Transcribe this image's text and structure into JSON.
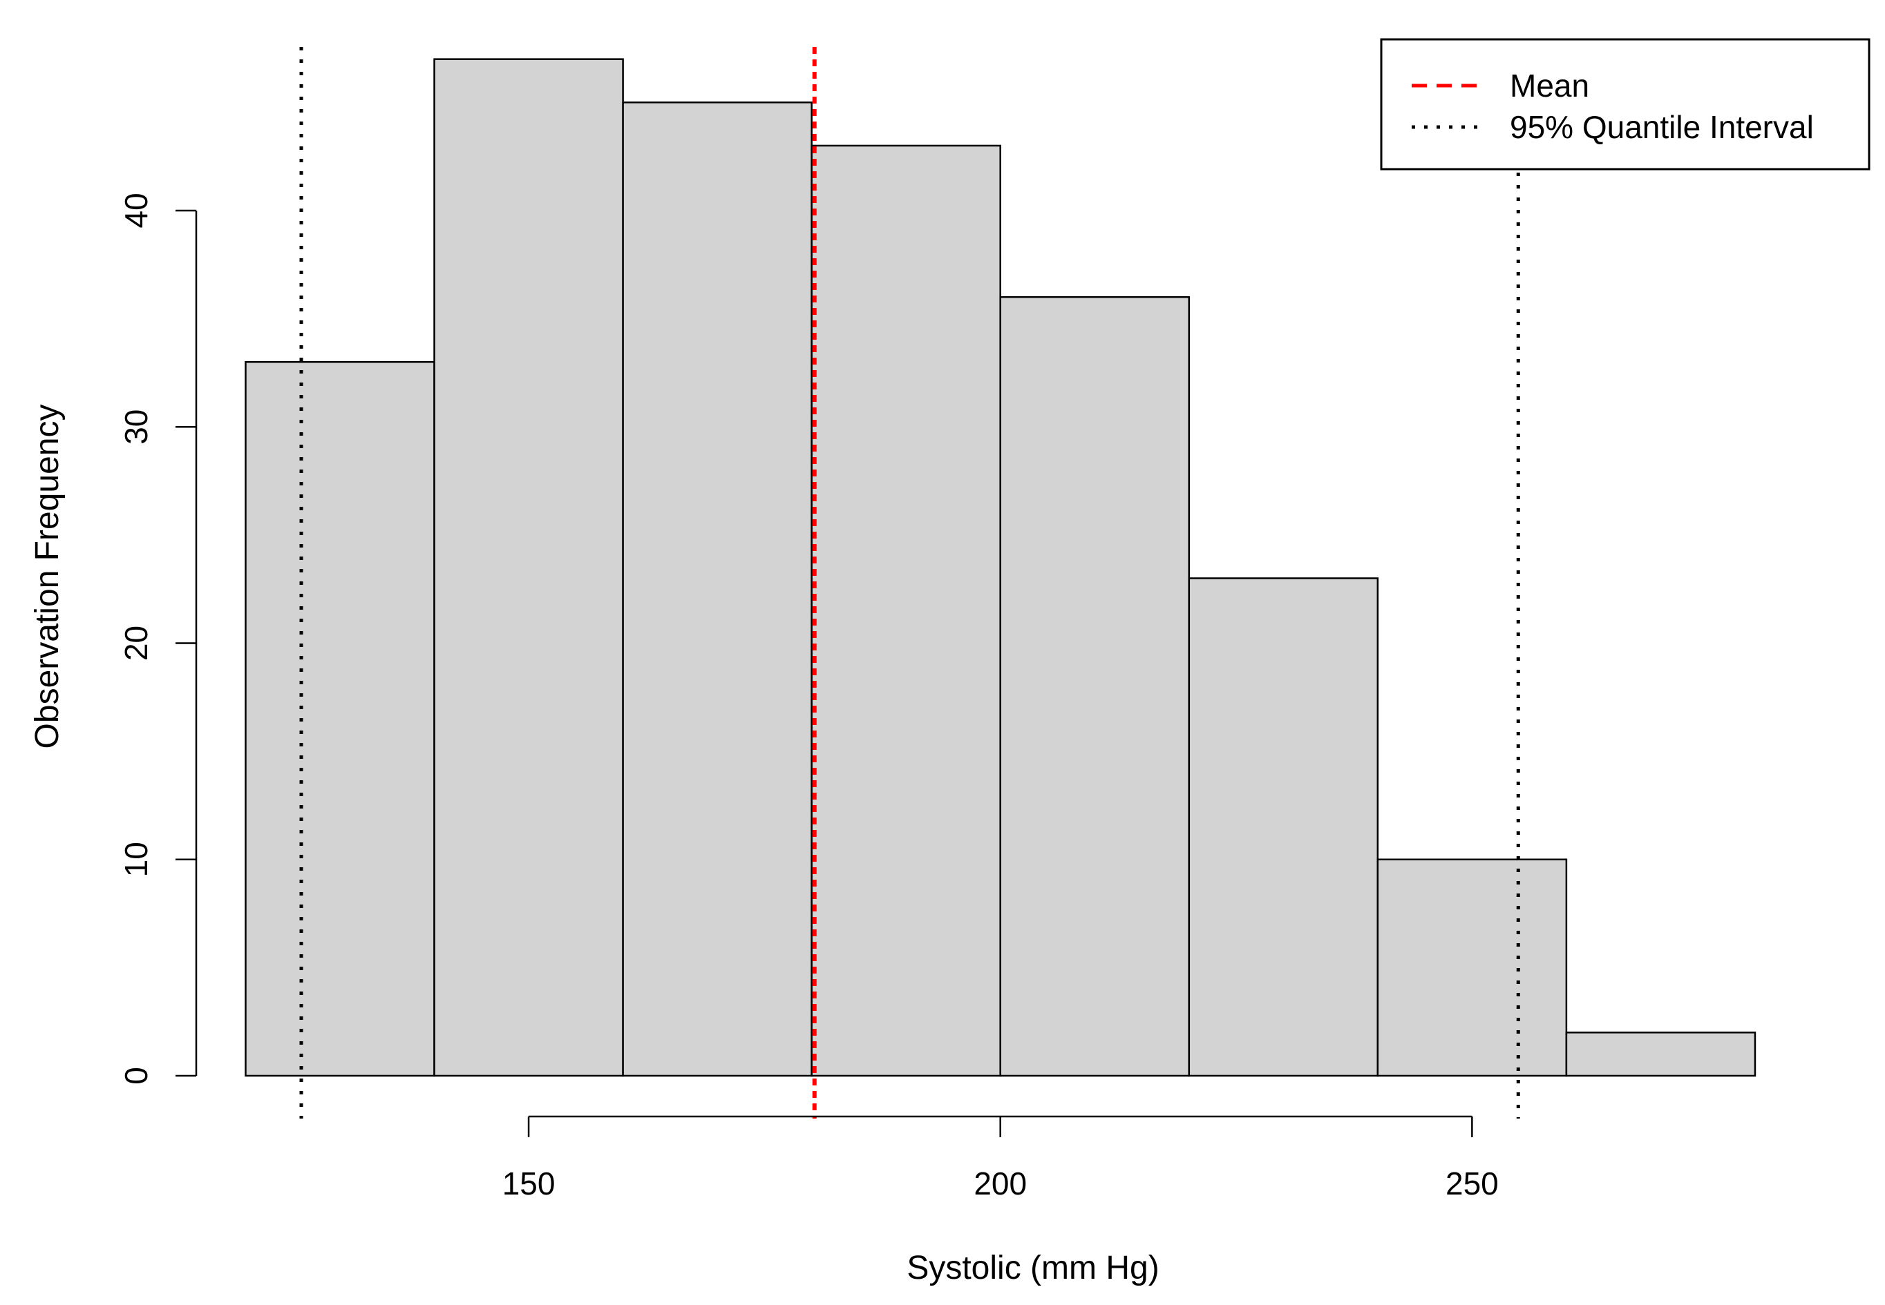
{
  "chart_data": {
    "type": "bar",
    "subtype": "histogram",
    "bins": [
      {
        "x0": 120,
        "x1": 140,
        "count": 33
      },
      {
        "x0": 140,
        "x1": 160,
        "count": 47
      },
      {
        "x0": 160,
        "x1": 180,
        "count": 45
      },
      {
        "x0": 180,
        "x1": 200,
        "count": 43
      },
      {
        "x0": 200,
        "x1": 220,
        "count": 36
      },
      {
        "x0": 220,
        "x1": 240,
        "count": 23
      },
      {
        "x0": 240,
        "x1": 260,
        "count": 10
      },
      {
        "x0": 260,
        "x1": 280,
        "count": 2
      }
    ],
    "xlabel": "Systolic (mm Hg)",
    "ylabel": "Observation Frequency",
    "xticks": [
      150,
      200,
      250
    ],
    "yticks": [
      0,
      10,
      20,
      30,
      40
    ],
    "xlim": [
      113.3,
      288.5
    ],
    "ylim": [
      0,
      49
    ],
    "mean": 180.3,
    "quantile_interval": [
      125.9,
      254.9
    ],
    "bar_fill": "#d3d3d3",
    "mean_color": "#ff0000",
    "quantile_color": "#000000",
    "legend": {
      "placement": "top-right",
      "entries": [
        {
          "label": "Mean",
          "style": "dashed",
          "color": "#ff0000"
        },
        {
          "label": "95% Quantile Interval",
          "style": "dotted",
          "color": "#000000"
        }
      ]
    },
    "grid": false
  }
}
